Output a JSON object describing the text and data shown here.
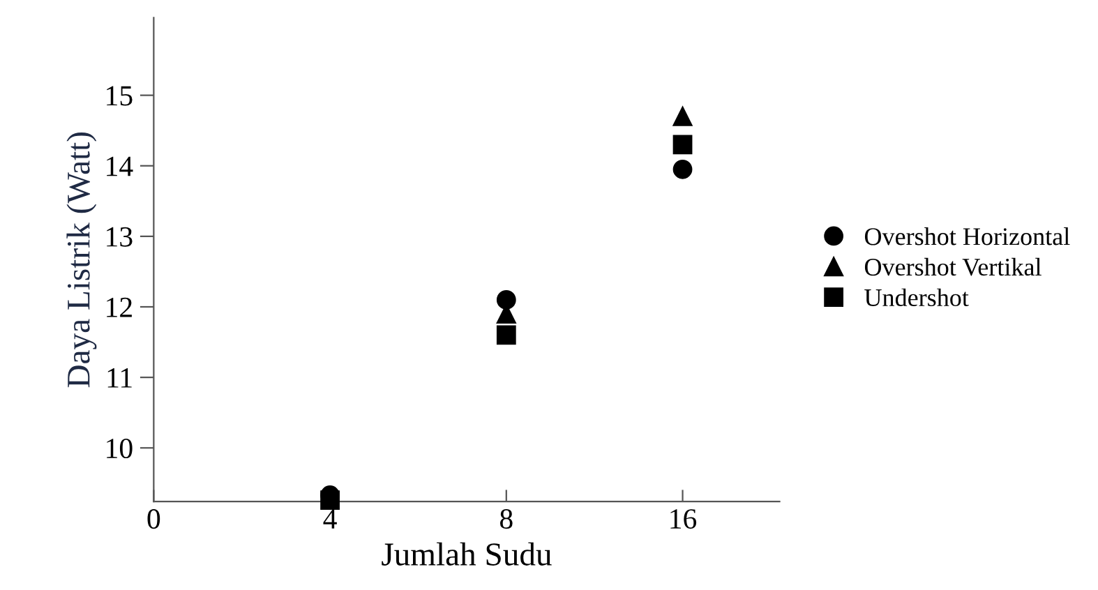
{
  "chart_data": {
    "type": "scatter",
    "xlabel": "Jumlah Sudu",
    "ylabel": "Daya Listrik (Watt)",
    "categories": [
      "0",
      "4",
      "8",
      "16"
    ],
    "ylim": [
      9.24,
      16.1
    ],
    "yticks": [
      10,
      11,
      12,
      13,
      14,
      15
    ],
    "grid": false,
    "legend": "right",
    "series": [
      {
        "name": "Overshot Horizontal",
        "color": "#000000",
        "marker": "circle",
        "values": [
          null,
          9.33,
          12.1,
          13.95
        ]
      },
      {
        "name": "Overshot Vertikal",
        "color": "#000000",
        "marker": "triangle",
        "values": [
          null,
          null,
          11.9,
          14.7
        ]
      },
      {
        "name": "Undershot",
        "color": "#000000",
        "marker": "square",
        "values": [
          null,
          9.26,
          11.6,
          14.3
        ]
      }
    ]
  }
}
